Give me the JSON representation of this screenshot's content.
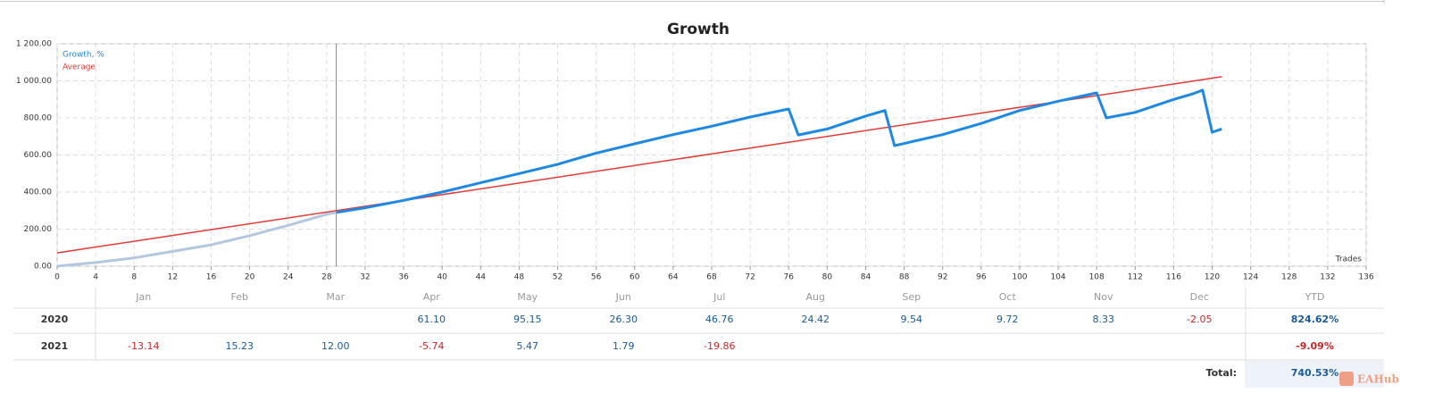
{
  "chart_data": {
    "type": "line",
    "title": "Growth",
    "x_label": "Trades",
    "x": [
      0,
      4,
      8,
      12,
      16,
      20,
      24,
      28,
      29,
      32,
      36,
      40,
      44,
      48,
      52,
      56,
      60,
      64,
      68,
      72,
      76,
      77,
      80,
      84,
      86,
      87,
      92,
      96,
      100,
      104,
      108,
      109,
      112,
      116,
      118,
      119,
      120,
      121
    ],
    "series": [
      {
        "name": "Growth, %",
        "color": "#1e88e5",
        "early_color": "#b3c7e0",
        "values": [
          0,
          20,
          45,
          80,
          115,
          165,
          220,
          280,
          290,
          315,
          355,
          400,
          450,
          500,
          550,
          610,
          660,
          710,
          755,
          805,
          848,
          708,
          740,
          810,
          840,
          650,
          710,
          770,
          840,
          890,
          935,
          800,
          830,
          900,
          930,
          950,
          723,
          740
        ]
      },
      {
        "name": "Average",
        "color": "#e53935",
        "x": [
          0,
          121
        ],
        "values": [
          72,
          1022
        ]
      }
    ],
    "marker_x": 29,
    "xlim": [
      0,
      136
    ],
    "xticks": [
      0,
      4,
      8,
      12,
      16,
      20,
      24,
      28,
      32,
      36,
      40,
      44,
      48,
      52,
      56,
      60,
      64,
      68,
      72,
      76,
      80,
      84,
      88,
      92,
      96,
      100,
      104,
      108,
      112,
      116,
      120,
      124,
      128,
      132,
      136
    ],
    "ylim": [
      0,
      1200
    ],
    "yticks": [
      {
        "value": 0,
        "label": "0.00"
      },
      {
        "value": 200,
        "label": "200.00"
      },
      {
        "value": 400,
        "label": "400.00"
      },
      {
        "value": 600,
        "label": "600.00"
      },
      {
        "value": 800,
        "label": "800.00"
      },
      {
        "value": 1000,
        "label": "1 000.00"
      },
      {
        "value": 1200,
        "label": "1 200.00"
      }
    ],
    "grid": true,
    "legend": "top-left"
  },
  "table": {
    "months": [
      "Jan",
      "Feb",
      "Mar",
      "Apr",
      "May",
      "Jun",
      "Jul",
      "Aug",
      "Sep",
      "Oct",
      "Nov",
      "Dec"
    ],
    "ytd_label": "YTD",
    "rows": [
      {
        "year": "2020",
        "cells": [
          null,
          null,
          null,
          "61.10",
          "95.15",
          "26.30",
          "46.76",
          "24.42",
          "9.54",
          "9.72",
          "8.33",
          "-2.05"
        ],
        "ytd": "824.62%"
      },
      {
        "year": "2021",
        "cells": [
          "-13.14",
          "15.23",
          "12.00",
          "-5.74",
          "5.47",
          "1.79",
          "-19.86",
          null,
          null,
          null,
          null,
          null
        ],
        "ytd": "-9.09%"
      }
    ],
    "total_label": "Total:",
    "total": "740.53%"
  },
  "watermark": "EAHub"
}
